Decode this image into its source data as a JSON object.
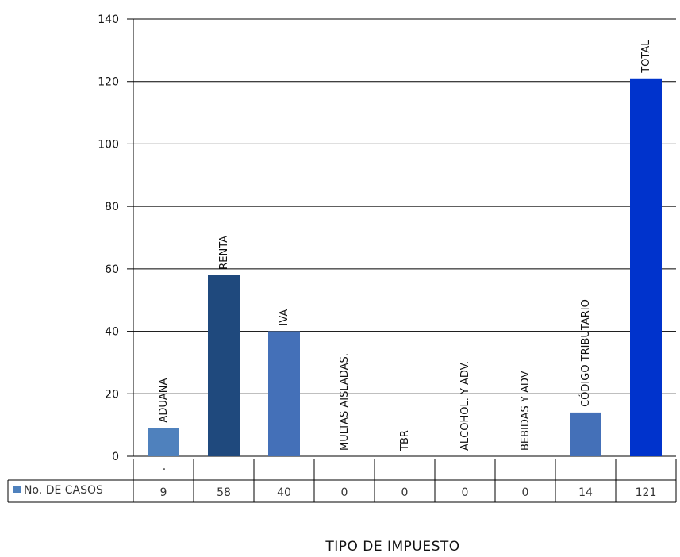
{
  "chart_data": {
    "type": "bar",
    "categories": [
      "ADUANA",
      "RENTA",
      "IVA",
      "MULTAS AISLADAS.",
      "TBR",
      "ALCOHOL. Y ADV.",
      "BEBIDAS Y ADV",
      "CÓDIGO TRIBUTARIO",
      "TOTAL"
    ],
    "series": [
      {
        "name": "No. DE CASOS",
        "values": [
          9,
          58,
          40,
          0,
          0,
          0,
          0,
          14,
          121
        ],
        "colors": [
          "#4f81bd",
          "#1f497d",
          "#4470b8",
          "#4f81bd",
          "#4f81bd",
          "#4f81bd",
          "#4f81bd",
          "#4470b8",
          "#0033cc"
        ]
      }
    ],
    "ylim": [
      0,
      140
    ],
    "yticks": [
      0,
      20,
      40,
      60,
      80,
      100,
      120,
      140
    ],
    "xlabel": "TIPO DE IMPUESTO",
    "ylabel": "",
    "grid": true,
    "data_table": true,
    "legend_marker_color": "#4f81bd",
    "stray_mark": "."
  }
}
